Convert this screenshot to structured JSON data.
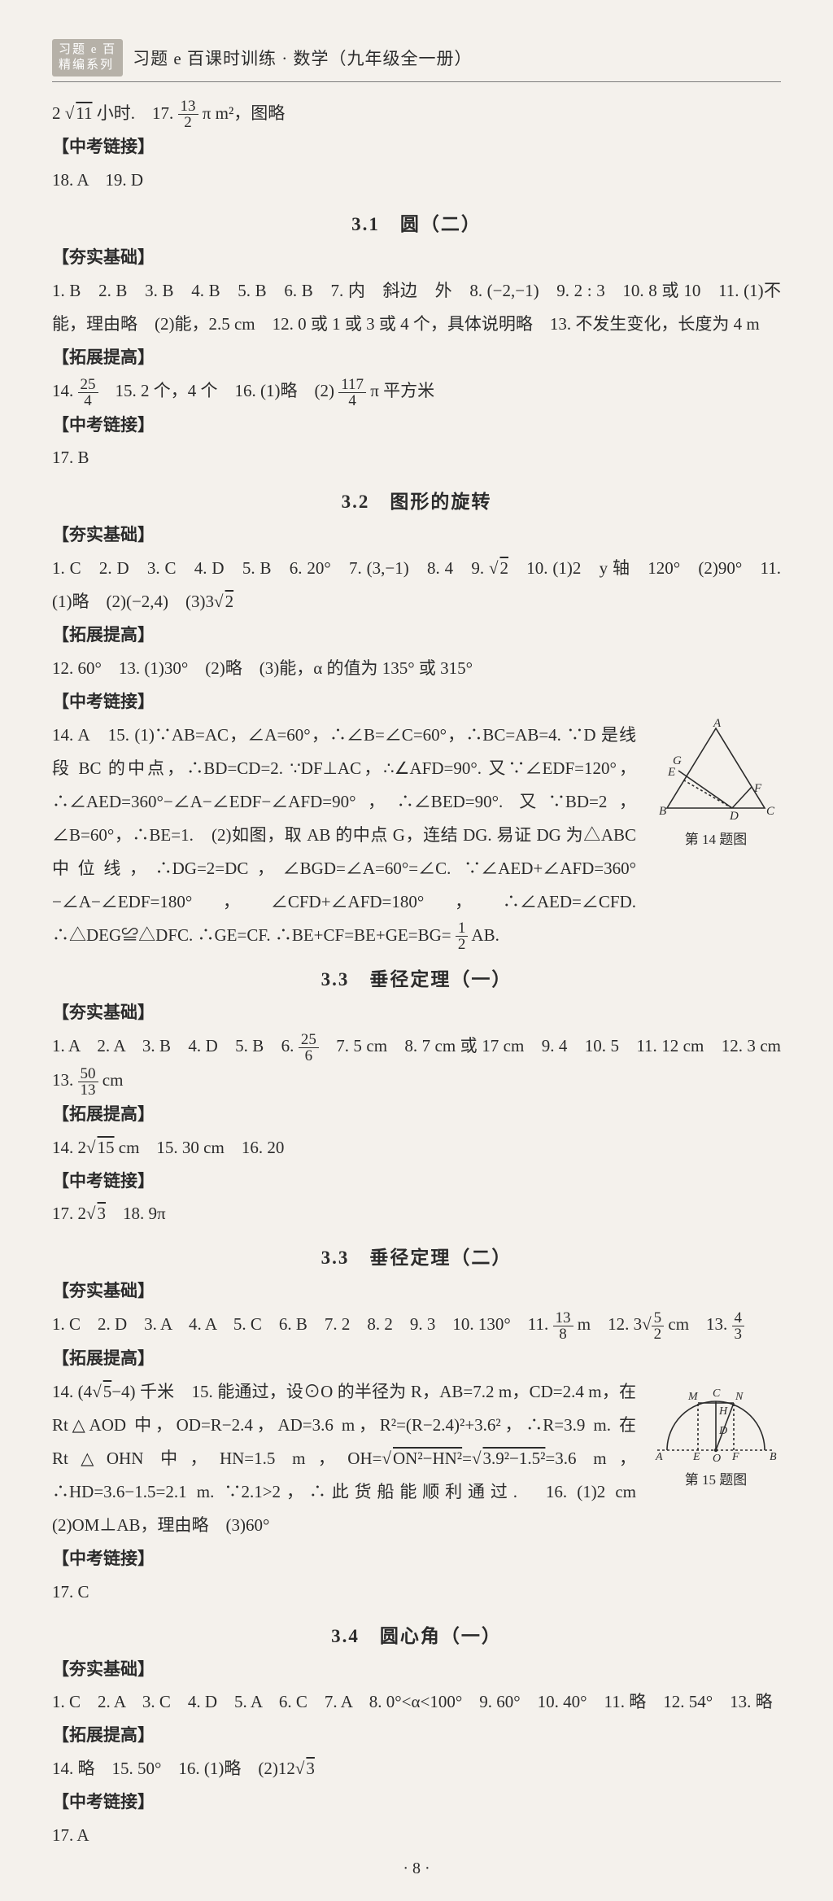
{
  "header": {
    "seal_line1": "习题 e 百",
    "seal_line2": "精编系列",
    "series_title": "习题 e 百课时训练 · 数学（九年级全一册）"
  },
  "carry": {
    "body": "2 √11 小时.　17. 13⁄2 π m²，图略",
    "tag": "【中考链接】",
    "ans": "18. A　19. D"
  },
  "s31": {
    "title": "3.1　圆（二）",
    "t1": "【夯实基础】",
    "b1": "1. B　2. B　3. B　4. B　5. B　6. B　7. 内　斜边　外　8. (−2,−1)　9. 2 : 3　10. 8 或 10　11. (1)不能，理由略　(2)能，2.5 cm　12. 0 或 1 或 3 或 4 个，具体说明略　13. 不发生变化，长度为 4 m",
    "t2": "【拓展提高】",
    "b2": "14. 25⁄4　15. 2 个，4 个　16. (1)略　(2) 117⁄4 π 平方米",
    "t3": "【中考链接】",
    "b3": "17. B"
  },
  "s32": {
    "title": "3.2　图形的旋转",
    "t1": "【夯实基础】",
    "b1": "1. C　2. D　3. C　4. D　5. B　6. 20°　7. (3,−1)　8. 4　9. √2　10. (1)2　y 轴　120°　(2)90°　11. (1)略　(2)(−2,4)　(3)3√2",
    "t2": "【拓展提高】",
    "b2": "12. 60°　13. (1)30°　(2)略　(3)能，α 的值为 135° 或 315°",
    "t3": "【中考链接】",
    "b3": "14. A　15. (1)∵AB=AC，∠A=60°，∴∠B=∠C=60°，∴BC=AB=4. ∵D 是线段 BC 的中点，∴BD=CD=2. ∵DF⊥AC，∴∠AFD=90°. 又∵∠EDF=120°，∴∠AED=360°−∠A−∠EDF−∠AFD=90°，∴∠BED=90°. 又∵BD=2，∠B=60°，∴BE=1.　(2)如图，取 AB 的中点 G，连结 DG. 易证 DG 为△ABC 中位线，∴DG=2=DC，∠BGD=∠A=60°=∠C. ∵∠AED+∠AFD=360°−∠A−∠EDF=180°，∠CFD+∠AFD=180°，∴∠AED=∠CFD. ∴△DEG≌△DFC. ∴GE=CF. ∴BE+CF=BE+GE=BG= 1⁄2 AB.",
    "figcap": "第 14 题图"
  },
  "s33a": {
    "title": "3.3　垂径定理（一）",
    "t1": "【夯实基础】",
    "b1": "1. A　2. A　3. B　4. D　5. B　6. 25⁄6　7. 5 cm　8. 7 cm 或 17 cm　9. 4　10. 5　11. 12 cm　12. 3 cm　13. 50⁄13 cm",
    "t2": "【拓展提高】",
    "b2": "14. 2√15 cm　15. 30 cm　16. 20",
    "t3": "【中考链接】",
    "b3": "17. 2√3　18. 9π"
  },
  "s33b": {
    "title": "3.3　垂径定理（二）",
    "t1": "【夯实基础】",
    "b1": "1. C　2. D　3. A　4. A　5. C　6. B　7. 2　8. 2　9. 3　10. 130°　11. 13⁄8 m　12. 3√5⁄2 cm　13. 4⁄3",
    "t2": "【拓展提高】",
    "b2": "14. (4√5−4) 千米　15. 能通过，设⊙O 的半径为 R，AB=7.2 m，CD=2.4 m，在 Rt△AOD 中，OD=R−2.4，AD=3.6 m，R²=(R−2.4)²+3.6²，∴R=3.9 m. 在 Rt△OHN 中，HN=1.5 m，OH=√(ON²−HN²)=√(3.9²−1.5²)=3.6 m，∴HD=3.6−1.5=2.1 m. ∵2.1>2，∴此货船能顺利通过.　16. (1)2 cm　(2)OM⊥AB，理由略　(3)60°",
    "t3": "【中考链接】",
    "b3": "17. C",
    "figcap": "第 15 题图"
  },
  "s34": {
    "title": "3.4　圆心角（一）",
    "t1": "【夯实基础】",
    "b1": "1. C　2. A　3. C　4. D　5. A　6. C　7. A　8. 0°<α<100°　9. 60°　10. 40°　11. 略　12. 54°　13. 略",
    "t2": "【拓展提高】",
    "b2": "14. 略　15. 50°　16. (1)略　(2)12√3",
    "t3": "【中考链接】",
    "b3": "17. A"
  },
  "page_number": "· 8 ·",
  "figA": {
    "stroke": "#2b2b2b",
    "dash": "3,3",
    "labels": {
      "A": "A",
      "B": "B",
      "C": "C",
      "D": "D",
      "E": "E",
      "F": "F",
      "G": "G"
    }
  },
  "figB": {
    "stroke": "#2b2b2b",
    "dash": "3,3",
    "labels": {
      "A": "A",
      "B": "B",
      "M": "M",
      "C": "C",
      "N": "N",
      "H": "H",
      "D": "D",
      "E": "E",
      "F": "F",
      "O": "O"
    }
  }
}
